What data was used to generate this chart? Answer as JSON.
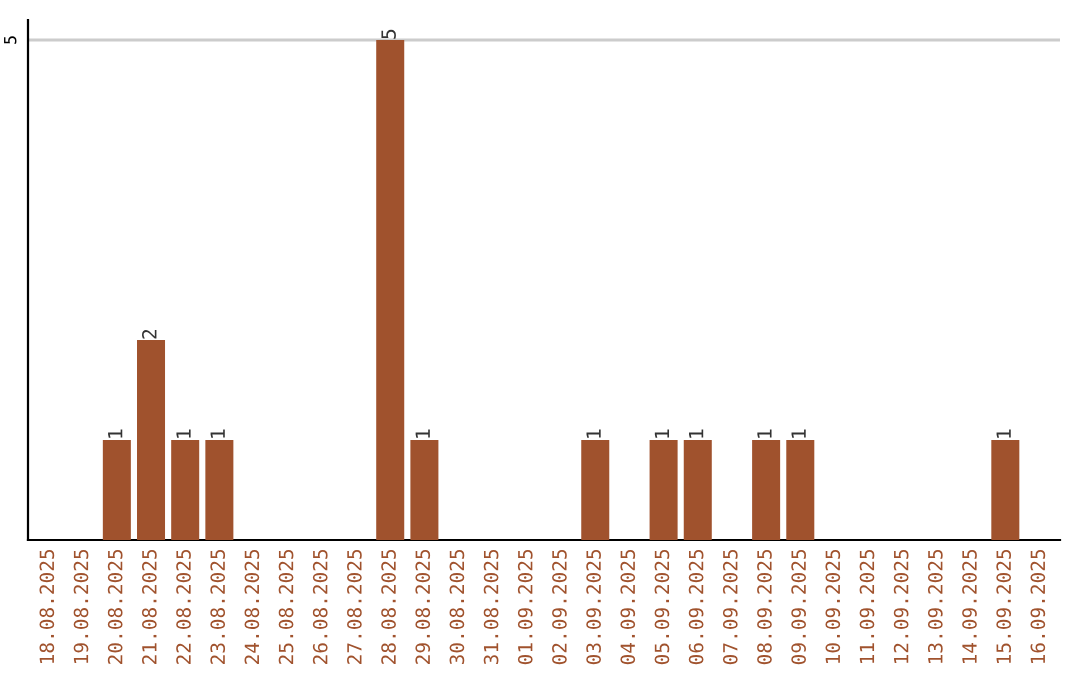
{
  "chart_data": {
    "type": "bar",
    "categories": [
      "18.08.2025",
      "19.08.2025",
      "20.08.2025",
      "21.08.2025",
      "22.08.2025",
      "23.08.2025",
      "24.08.2025",
      "25.08.2025",
      "26.08.2025",
      "27.08.2025",
      "28.08.2025",
      "29.08.2025",
      "30.08.2025",
      "31.08.2025",
      "01.09.2025",
      "02.09.2025",
      "03.09.2025",
      "04.09.2025",
      "05.09.2025",
      "06.09.2025",
      "07.09.2025",
      "08.09.2025",
      "09.09.2025",
      "10.09.2025",
      "11.09.2025",
      "12.09.2025",
      "13.09.2025",
      "14.09.2025",
      "15.09.2025",
      "16.09.2025"
    ],
    "values": [
      0,
      0,
      1,
      2,
      1,
      1,
      0,
      0,
      0,
      0,
      5,
      1,
      0,
      0,
      0,
      0,
      1,
      0,
      1,
      1,
      0,
      1,
      1,
      0,
      0,
      0,
      0,
      0,
      1,
      0
    ],
    "value_labels": [
      null,
      null,
      "1",
      "2",
      "1",
      "1",
      null,
      null,
      null,
      null,
      "5",
      "1",
      null,
      null,
      null,
      null,
      "1",
      null,
      "1",
      "1",
      null,
      "1",
      "1",
      null,
      null,
      null,
      null,
      null,
      "1",
      null
    ],
    "color": "#a0522d",
    "ylim": [
      0,
      5.2
    ],
    "yticks": [
      5
    ],
    "grid": "y",
    "legend": false
  }
}
